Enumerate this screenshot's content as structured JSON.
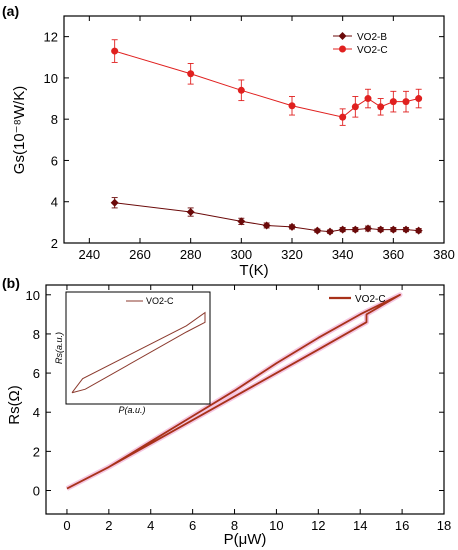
{
  "chart_data": [
    {
      "type": "line",
      "panel_label": "(a)",
      "xlabel": "T(K)",
      "ylabel": "Gs(10⁻⁸W/K)",
      "xlim": [
        230,
        380
      ],
      "ylim": [
        2,
        13
      ],
      "xticks": [
        240,
        260,
        280,
        300,
        320,
        340,
        360,
        380
      ],
      "yticks": [
        2,
        4,
        6,
        8,
        10,
        12
      ],
      "legend_position": "top-right",
      "series": [
        {
          "name": "VO2-B",
          "color": "#6b0a0a",
          "marker": "diamond",
          "x": [
            250,
            280,
            300,
            310,
            320,
            330,
            335,
            340,
            345,
            350,
            355,
            360,
            365,
            370
          ],
          "y": [
            3.95,
            3.5,
            3.05,
            2.85,
            2.78,
            2.6,
            2.55,
            2.65,
            2.65,
            2.7,
            2.65,
            2.65,
            2.65,
            2.6
          ],
          "err": [
            0.25,
            0.2,
            0.15,
            0.12,
            0.1,
            0.08,
            0.08,
            0.1,
            0.1,
            0.12,
            0.1,
            0.1,
            0.1,
            0.1
          ]
        },
        {
          "name": "VO2-C",
          "color": "#e0201f",
          "marker": "circle",
          "x": [
            250,
            280,
            300,
            320,
            340,
            345,
            350,
            355,
            360,
            365,
            370
          ],
          "y": [
            11.3,
            10.2,
            9.4,
            8.65,
            8.1,
            8.6,
            9.0,
            8.6,
            8.85,
            8.85,
            9.0
          ],
          "err": [
            0.55,
            0.5,
            0.5,
            0.45,
            0.4,
            0.5,
            0.45,
            0.4,
            0.5,
            0.5,
            0.45
          ]
        }
      ]
    },
    {
      "type": "line",
      "panel_label": "(b)",
      "xlabel": "P(μW)",
      "ylabel": "Rs(Ω)",
      "xlim": [
        -1,
        18
      ],
      "ylim": [
        -1.2,
        10.5
      ],
      "xticks": [
        0,
        2,
        4,
        6,
        8,
        10,
        12,
        14,
        16,
        18
      ],
      "yticks": [
        0,
        2,
        4,
        6,
        8,
        10
      ],
      "legend_position": "top-right",
      "series": [
        {
          "name": "VO2-C",
          "color": "#a8321a",
          "x": [
            0,
            2,
            4,
            6,
            8,
            10,
            12,
            14.3,
            14.3,
            15.9,
            14,
            12,
            10,
            8,
            6,
            4,
            2,
            0
          ],
          "y": [
            0.1,
            1.2,
            2.4,
            3.6,
            4.8,
            6.0,
            7.2,
            8.6,
            9.0,
            10.0,
            9.0,
            7.8,
            6.5,
            5.1,
            3.8,
            2.5,
            1.2,
            0.1
          ]
        }
      ],
      "inset": {
        "xlabel": "P(a.u.)",
        "ylabel": "Rs(a.u.)",
        "series": [
          {
            "name": "VO2-C",
            "color": "#8b3a2e",
            "x": [
              0.0,
              0.08,
              0.86,
              1.0,
              1.0,
              0.86,
              0.1,
              0.0
            ],
            "y": [
              0.06,
              0.22,
              0.82,
              0.97,
              0.86,
              0.75,
              0.1,
              0.06
            ]
          }
        ]
      }
    }
  ]
}
